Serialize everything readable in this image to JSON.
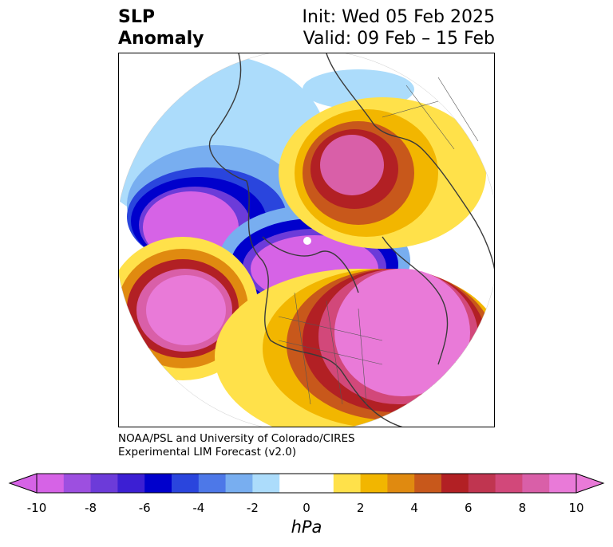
{
  "title": {
    "left_line1": "SLP",
    "left_line2": "Anomaly",
    "right_line1": "Init: Wed 05 Feb 2025",
    "right_line2": "Valid: 09 Feb – 15 Feb"
  },
  "credit": {
    "line1": "NOAA/PSL and University of Colorado/CIRES",
    "line2": "Experimental LIM Forecast (v2.0)"
  },
  "colorbar": {
    "unit": "hPa",
    "levels": [
      {
        "value": "-10",
        "color": "#d663e6"
      },
      {
        "value": "",
        "color": "#9d4fe0"
      },
      {
        "value": "-8",
        "color": "#6c3bd9"
      },
      {
        "value": "",
        "color": "#3c1fd3"
      },
      {
        "value": "-6",
        "color": "#0000cc"
      },
      {
        "value": "",
        "color": "#2a45dd"
      },
      {
        "value": "-4",
        "color": "#4d78e8"
      },
      {
        "value": "",
        "color": "#78aef0"
      },
      {
        "value": "-2",
        "color": "#acdcfb"
      },
      {
        "value": "",
        "color": "#ffffff"
      },
      {
        "value": "0",
        "color": "#ffffff"
      },
      {
        "value": "",
        "color": "#ffe14a"
      },
      {
        "value": "2",
        "color": "#f2b600"
      },
      {
        "value": "",
        "color": "#e08a10"
      },
      {
        "value": "4",
        "color": "#c8581b"
      },
      {
        "value": "",
        "color": "#b22024"
      },
      {
        "value": "6",
        "color": "#c03550"
      },
      {
        "value": "",
        "color": "#d2487a"
      },
      {
        "value": "8",
        "color": "#d95fa8"
      },
      {
        "value": "",
        "color": "#e97ad8"
      },
      {
        "value": "10",
        "color": "#e97ad8"
      }
    ],
    "tick_labels": [
      "-10",
      "-8",
      "-6",
      "-4",
      "-2",
      "0",
      "2",
      "4",
      "6",
      "8",
      "10"
    ]
  }
}
